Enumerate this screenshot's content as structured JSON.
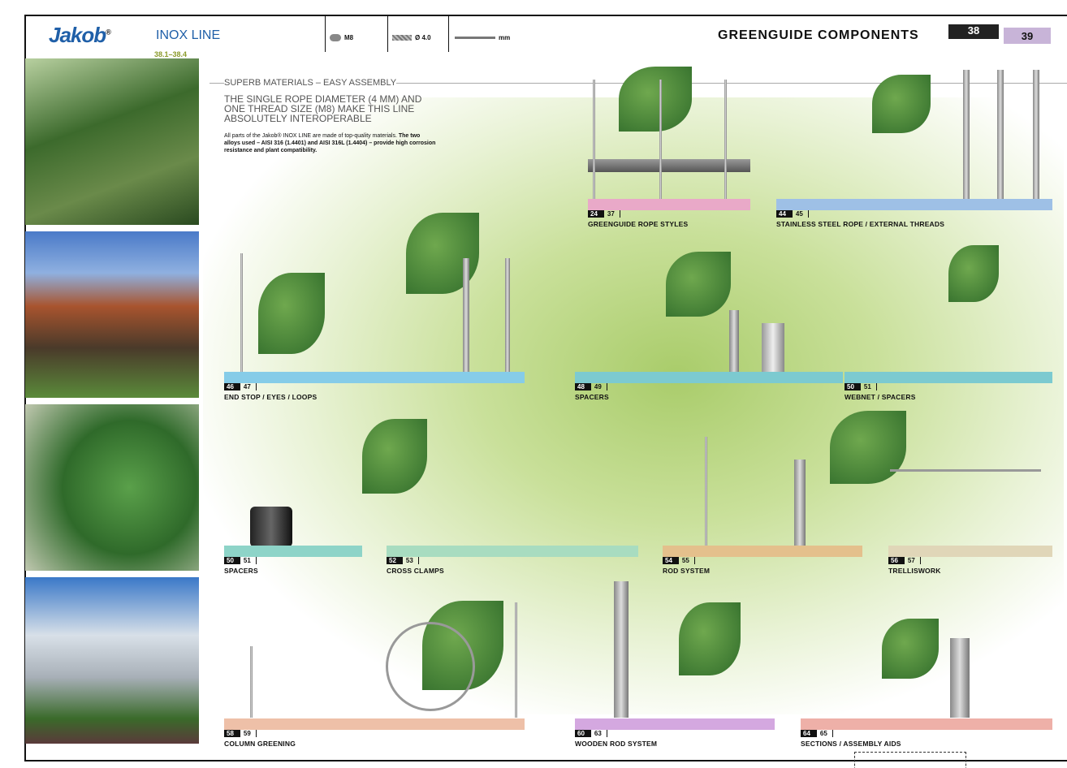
{
  "header": {
    "brand": "Jakob",
    "brand_mark": "®",
    "line": "INOX LINE",
    "pages": "38.1–38.4",
    "thread": "M8",
    "diameter": "Ø 4.0",
    "unit": "mm",
    "title": "GREENGUIDE COMPONENTS",
    "page_left": "38",
    "page_right": "39"
  },
  "intro": {
    "heading": "SUPERB MATERIALS – EASY ASSEMBLY",
    "lead": "THE SINGLE ROPE DIAMETER (4 MM) AND ONE THREAD SIZE (M8) MAKE THIS LINE ABSOLUTELY INTEROPERABLE",
    "body": "All parts of the Jakob® INOX LINE are made of top-quality materials.",
    "body_bold": "The two alloys used – AISI 316 (1.4401) and AISI 316L (1.4404) – provide high corrosion resistance and plant compatibility."
  },
  "sections": [
    {
      "from": "24",
      "to": "37",
      "label": "GREENGUIDE ROPE STYLES"
    },
    {
      "from": "44",
      "to": "45",
      "label": "STAINLESS STEEL ROPE / EXTERNAL THREADS"
    },
    {
      "from": "46",
      "to": "47",
      "label": "END STOP / EYES / LOOPS"
    },
    {
      "from": "48",
      "to": "49",
      "label": "SPACERS"
    },
    {
      "from": "50",
      "to": "51",
      "label": "WEBNET / SPACERS"
    },
    {
      "from": "50",
      "to": "51",
      "label": "SPACERS"
    },
    {
      "from": "52",
      "to": "53",
      "label": "CROSS CLAMPS"
    },
    {
      "from": "54",
      "to": "55",
      "label": "ROD SYSTEM"
    },
    {
      "from": "56",
      "to": "57",
      "label": "TRELLISWORK"
    },
    {
      "from": "58",
      "to": "59",
      "label": "COLUMN GREENING"
    },
    {
      "from": "60",
      "to": "63",
      "label": "WOODEN ROD SYSTEM"
    },
    {
      "from": "64",
      "to": "65",
      "label": "SECTIONS / ASSEMBLY AIDS"
    }
  ]
}
